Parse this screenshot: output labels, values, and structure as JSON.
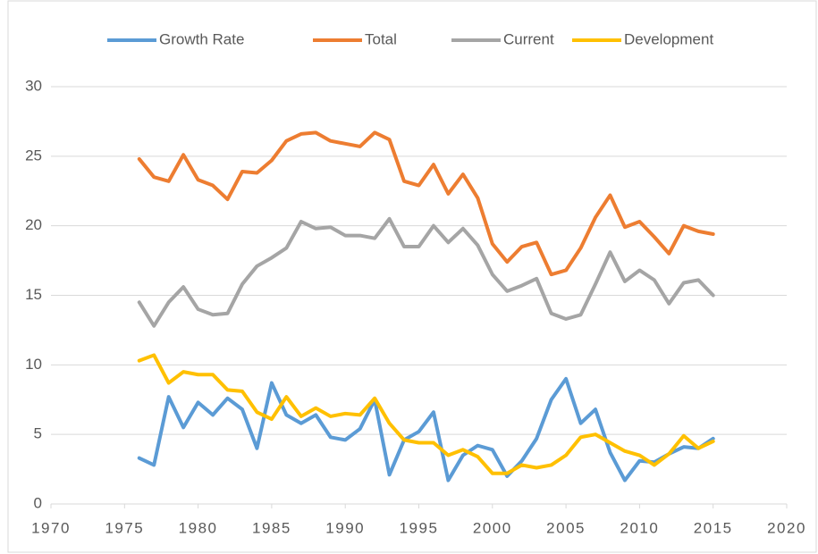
{
  "chart_data": {
    "type": "line",
    "x": [
      1976,
      1977,
      1978,
      1979,
      1980,
      1981,
      1982,
      1983,
      1984,
      1985,
      1986,
      1987,
      1988,
      1989,
      1990,
      1991,
      1992,
      1993,
      1994,
      1995,
      1996,
      1997,
      1998,
      1999,
      2000,
      2001,
      2002,
      2003,
      2004,
      2005,
      2006,
      2007,
      2008,
      2009,
      2010,
      2011,
      2012,
      2013,
      2014,
      2015
    ],
    "series": [
      {
        "name": "Growth Rate",
        "color": "#5b9bd5",
        "values": [
          3.3,
          2.8,
          7.7,
          5.5,
          7.3,
          6.4,
          7.6,
          6.8,
          4.0,
          8.7,
          6.4,
          5.8,
          6.4,
          4.8,
          4.6,
          5.4,
          7.5,
          2.1,
          4.6,
          5.2,
          6.6,
          1.7,
          3.5,
          4.2,
          3.9,
          2.0,
          3.1,
          4.7,
          7.5,
          9.0,
          5.8,
          6.8,
          3.7,
          1.7,
          3.1,
          3.0,
          3.6,
          4.1,
          4.0,
          4.7
        ]
      },
      {
        "name": "Total",
        "color": "#ed7d31",
        "values": [
          24.8,
          23.5,
          23.2,
          25.1,
          23.3,
          22.9,
          21.9,
          23.9,
          23.8,
          24.7,
          26.1,
          26.6,
          26.7,
          26.1,
          25.9,
          25.7,
          26.7,
          26.2,
          23.2,
          22.9,
          24.4,
          22.3,
          23.7,
          22.0,
          18.7,
          17.4,
          18.5,
          18.8,
          16.5,
          16.8,
          18.4,
          20.6,
          22.2,
          19.9,
          20.3,
          19.2,
          18.0,
          20.0,
          19.6,
          19.4
        ]
      },
      {
        "name": "Current",
        "color": "#a5a5a5",
        "values": [
          14.5,
          12.8,
          14.5,
          15.6,
          14.0,
          13.6,
          13.7,
          15.8,
          17.1,
          17.7,
          18.4,
          20.3,
          19.8,
          19.9,
          19.3,
          19.3,
          19.1,
          20.5,
          18.5,
          18.5,
          20.0,
          18.8,
          19.8,
          18.6,
          16.5,
          15.3,
          15.7,
          16.2,
          13.7,
          13.3,
          13.6,
          15.8,
          18.1,
          16.0,
          16.8,
          16.1,
          14.4,
          15.9,
          16.1,
          15.0
        ]
      },
      {
        "name": "Development",
        "color": "#ffc000",
        "values": [
          10.3,
          10.7,
          8.7,
          9.5,
          9.3,
          9.3,
          8.2,
          8.1,
          6.6,
          6.1,
          7.7,
          6.3,
          6.9,
          6.3,
          6.5,
          6.4,
          7.6,
          5.8,
          4.6,
          4.4,
          4.4,
          3.5,
          3.9,
          3.4,
          2.2,
          2.2,
          2.8,
          2.6,
          2.8,
          3.5,
          4.8,
          5.0,
          4.4,
          3.8,
          3.5,
          2.8,
          3.6,
          4.9,
          4.0,
          4.5
        ]
      }
    ],
    "xlim": [
      1970,
      2020
    ],
    "xticks": [
      1970,
      1975,
      1980,
      1985,
      1990,
      1995,
      2000,
      2005,
      2010,
      2015,
      2020
    ],
    "ylim": [
      0,
      30
    ],
    "yticks": [
      0,
      5,
      10,
      15,
      20,
      25,
      30
    ],
    "grid": true,
    "legend": "top"
  }
}
